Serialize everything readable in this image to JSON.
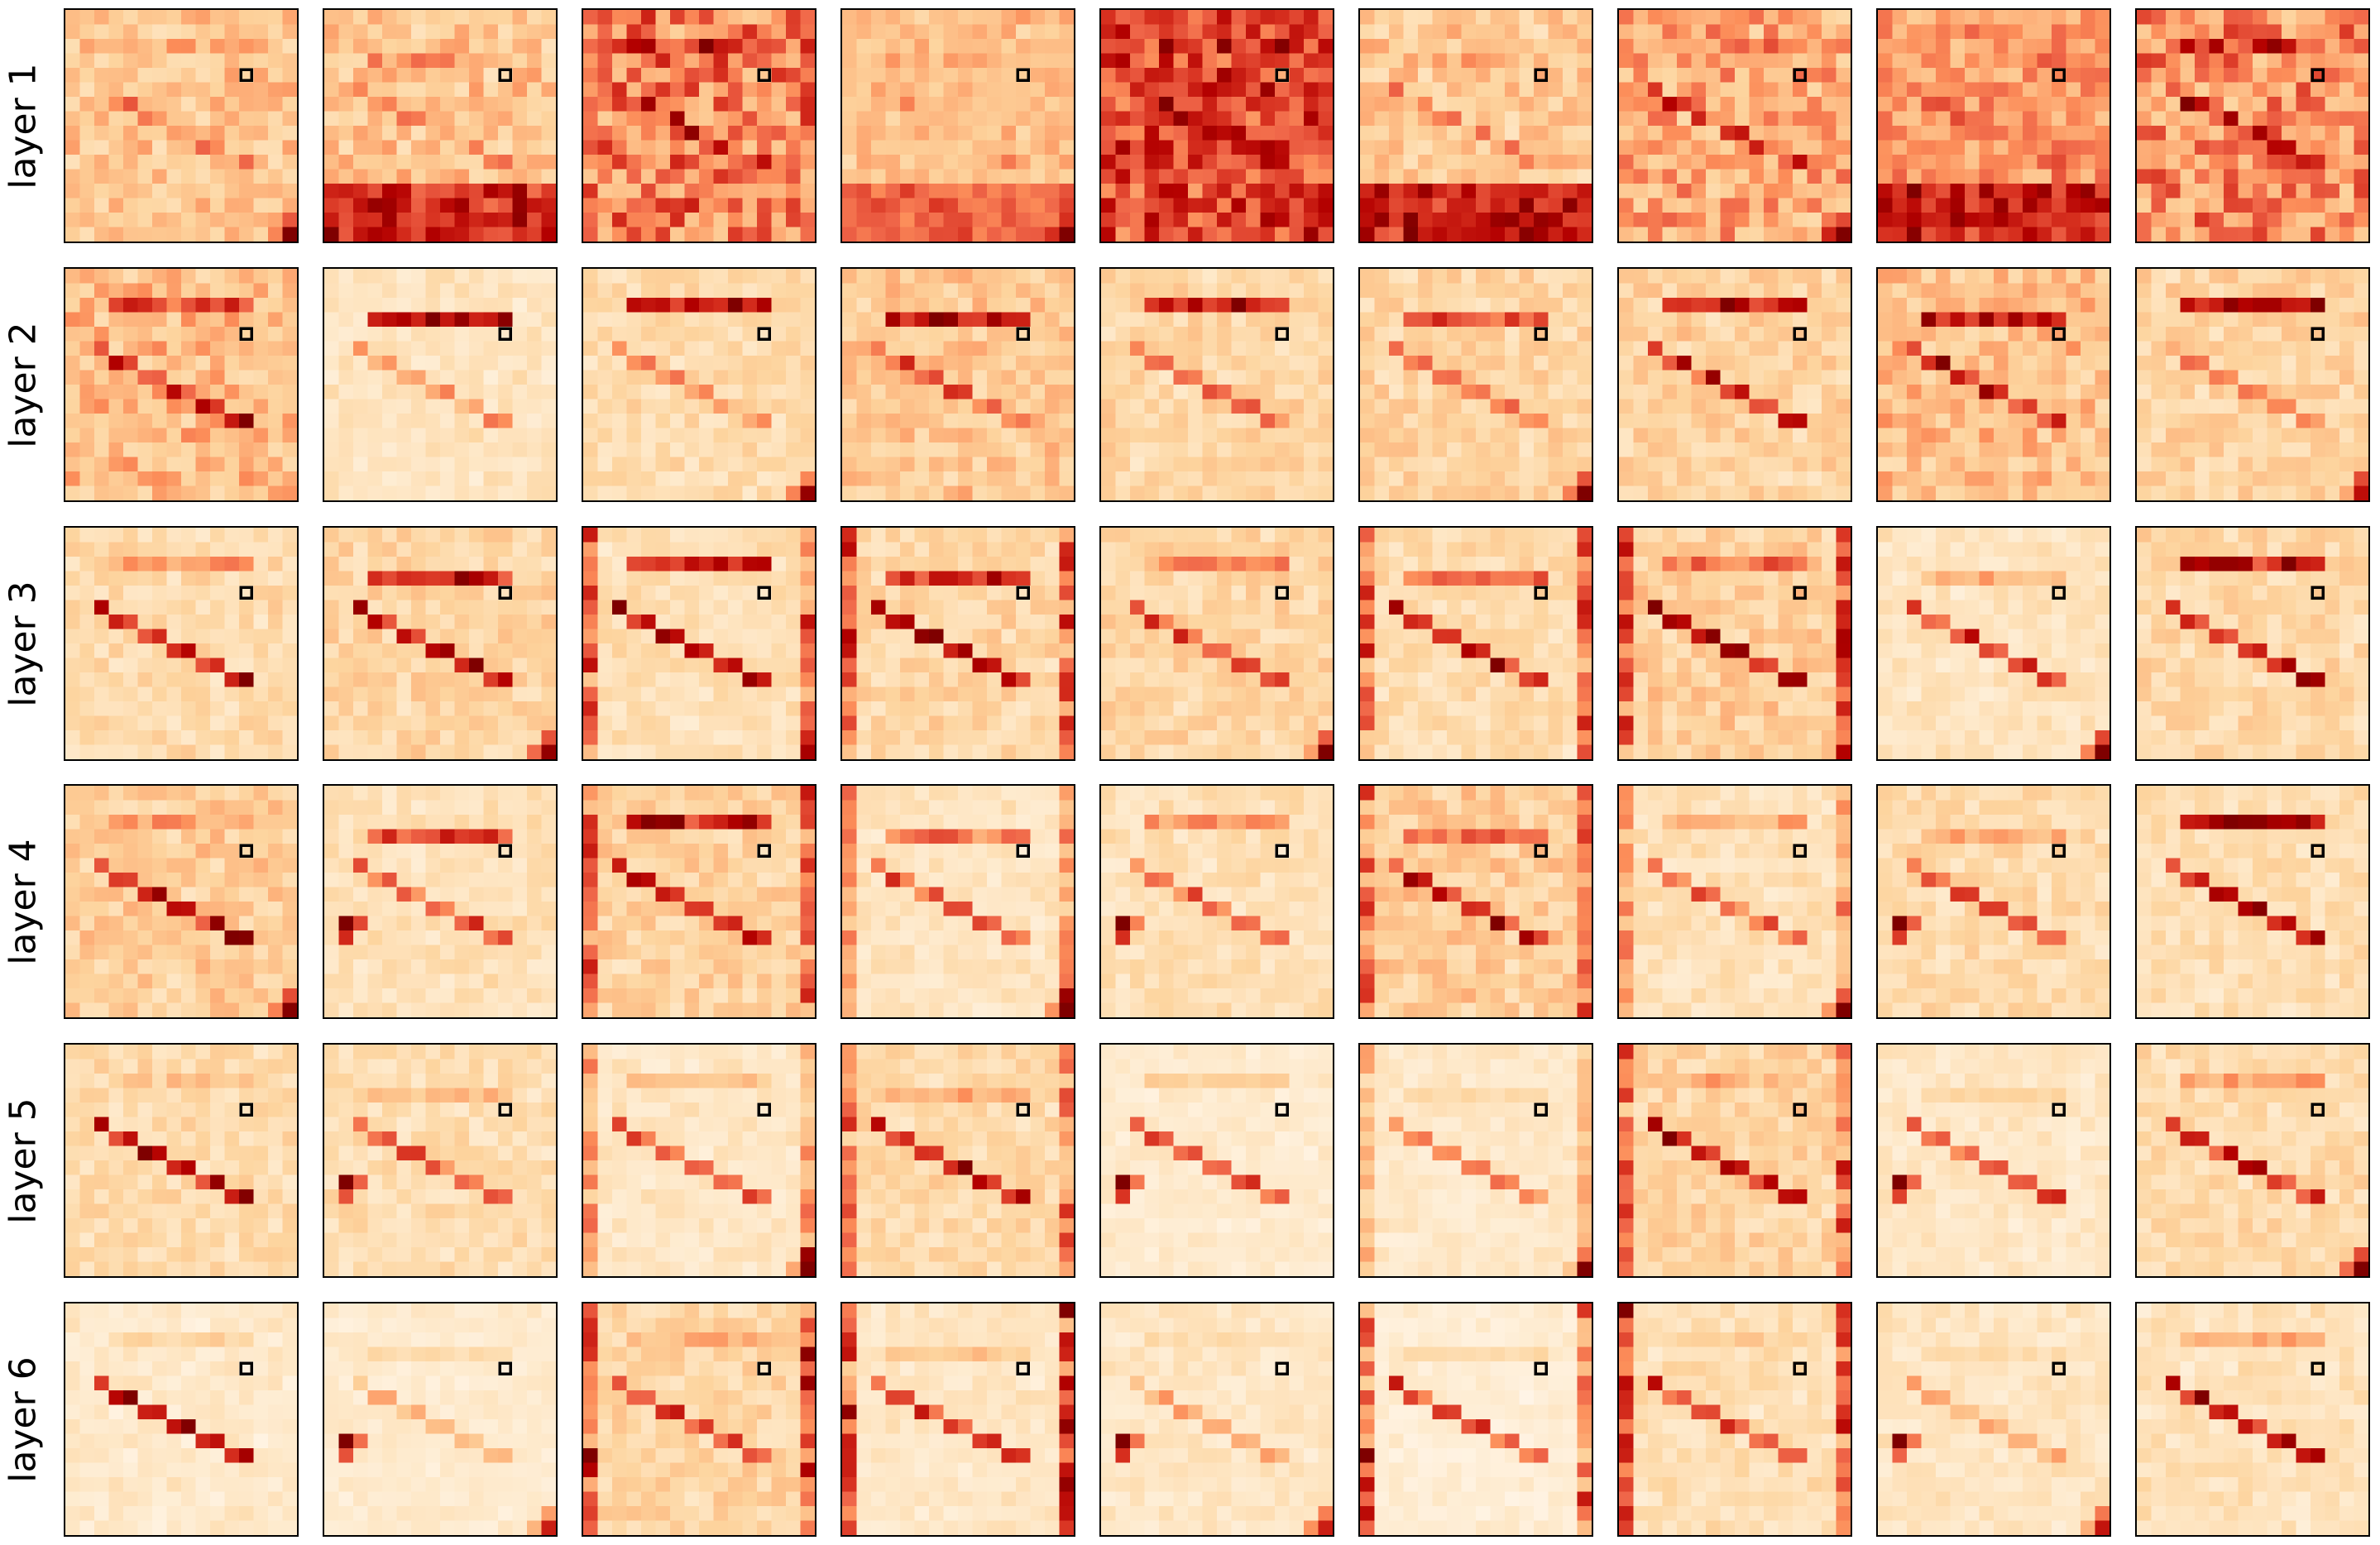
{
  "chart_data": {
    "type": "heatmap",
    "layout": "grid",
    "rows": 6,
    "columns": 9,
    "grid_size": 16,
    "colormap": "OrRd",
    "row_labels": [
      "layer 1",
      "layer 2",
      "layer 3",
      "layer 4",
      "layer 5",
      "layer 6"
    ],
    "query_marker": {
      "row_index": 4,
      "col_index": 12,
      "shape": "square",
      "color": "#000000"
    },
    "axes_ticks": false
  }
}
